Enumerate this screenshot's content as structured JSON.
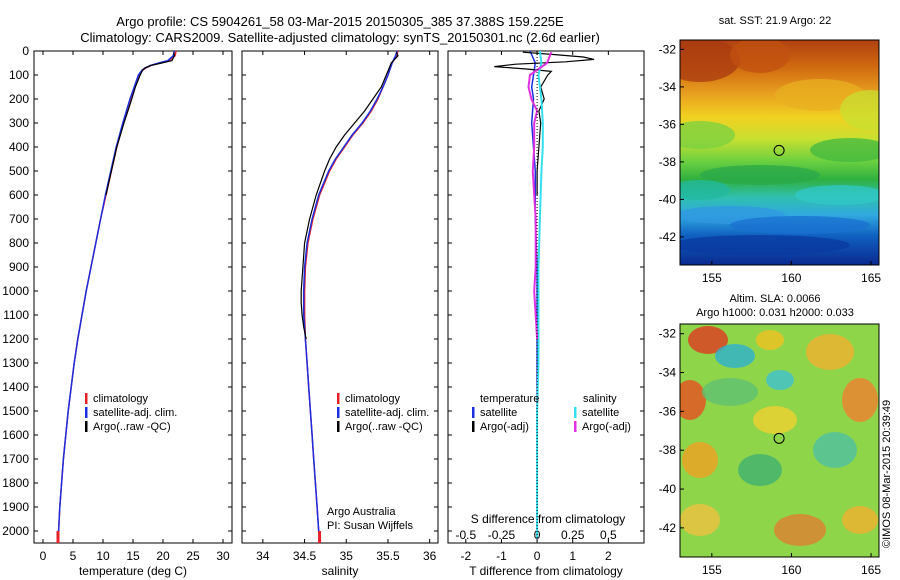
{
  "header": {
    "line1": "Argo profile: CS 5904261_58 03-Mar-2015 20150305_385 37.388S 159.225E",
    "line2": "Climatology: CARS2009. Satellite-adjusted climatology: synTS_20150301.nc (2.6d earlier)"
  },
  "stamp": "©IMOS 08-Mar-2015 20:39:49",
  "colors": {
    "climatology": "#e8202a",
    "satellite": "#1b2fe0",
    "argo": "#000000",
    "salinity_satellite": "#33e0f0",
    "salinity_argo": "#e030e0"
  },
  "chart_data": [
    {
      "type": "line",
      "name": "temperature-profile",
      "xlabel": "temperature (deg C)",
      "ylabel": "",
      "xlim": [
        -1.5,
        31.5
      ],
      "ylim": [
        0,
        2050
      ],
      "y_inverted": true,
      "xticks": [
        0,
        5,
        10,
        15,
        20,
        25,
        30
      ],
      "yticks": [
        0,
        100,
        200,
        300,
        400,
        500,
        600,
        700,
        800,
        900,
        1000,
        1100,
        1200,
        1300,
        1400,
        1500,
        1600,
        1700,
        1800,
        1900,
        2000
      ],
      "legend": [
        "climatology",
        "satellite-adj. clim.",
        "Argo(..raw -QC)"
      ],
      "legend_position": "lower-center",
      "series": [
        {
          "name": "climatology",
          "y": [
            0,
            20,
            40,
            50,
            60,
            70,
            80,
            100,
            150,
            200,
            300,
            400,
            500,
            600,
            700,
            800,
            900,
            1000,
            1100,
            1200,
            1300,
            1400,
            1500,
            1600,
            1700,
            1800,
            1900,
            2000,
            2030
          ],
          "x": [
            22.2,
            22.0,
            21.0,
            19.5,
            18.0,
            17.2,
            16.6,
            16.0,
            15.3,
            14.6,
            13.4,
            12.3,
            11.4,
            10.5,
            9.6,
            8.8,
            8.0,
            7.2,
            6.5,
            5.8,
            5.2,
            4.7,
            4.2,
            3.8,
            3.4,
            3.1,
            2.8,
            2.6,
            2.5
          ]
        },
        {
          "name": "satellite-adj. clim.",
          "y": [
            0,
            20,
            40,
            50,
            60,
            70,
            80,
            100,
            150,
            200,
            300,
            400,
            500,
            600,
            700,
            800,
            900,
            1000,
            1100,
            1200,
            1300,
            1400,
            1500,
            1600,
            1700,
            1800,
            1900,
            2000,
            2030
          ],
          "x": [
            21.9,
            21.7,
            20.8,
            19.3,
            17.9,
            17.1,
            16.5,
            15.9,
            15.2,
            14.5,
            13.3,
            12.2,
            11.3,
            10.4,
            9.6,
            8.8,
            8.0,
            7.2,
            6.5,
            5.8,
            5.2,
            4.7,
            4.2,
            3.8,
            3.4,
            3.1,
            2.8,
            2.6,
            2.5
          ]
        },
        {
          "name": "Argo(..raw -QC)",
          "y": [
            5,
            20,
            40,
            50,
            60,
            70,
            80,
            100,
            150,
            200,
            300,
            400,
            500,
            600
          ],
          "x": [
            21.8,
            21.9,
            21.5,
            19.8,
            18.0,
            17.0,
            16.6,
            16.2,
            15.4,
            14.8,
            13.5,
            12.3,
            11.4,
            10.5
          ]
        }
      ]
    },
    {
      "type": "line",
      "name": "salinity-profile",
      "xlabel": "salinity",
      "ylabel": "",
      "xlim": [
        33.75,
        36.1
      ],
      "ylim": [
        0,
        2050
      ],
      "y_inverted": true,
      "xticks": [
        34,
        34.5,
        35,
        35.5,
        36
      ],
      "xtick_labels": [
        "34",
        "34.5",
        "35",
        "35.5",
        "36"
      ],
      "legend": [
        "climatology",
        "satellite-adj. clim.",
        "Argo(..raw -QC)"
      ],
      "legend_position": "lower-center",
      "annotation": [
        "Argo Australia",
        "PI: Susan Wijffels"
      ],
      "series": [
        {
          "name": "climatology",
          "y": [
            0,
            20,
            50,
            100,
            150,
            200,
            250,
            300,
            350,
            400,
            450,
            500,
            600,
            700,
            800,
            900,
            1000,
            1100,
            1200,
            1300,
            1400,
            1500,
            1600,
            1700,
            1800,
            1900,
            2000,
            2030
          ],
          "x": [
            35.62,
            35.6,
            35.55,
            35.5,
            35.44,
            35.38,
            35.3,
            35.2,
            35.08,
            34.98,
            34.88,
            34.8,
            34.68,
            34.6,
            34.54,
            34.51,
            34.5,
            34.5,
            34.51,
            34.53,
            34.55,
            34.57,
            34.59,
            34.61,
            34.63,
            34.65,
            34.67,
            34.68
          ]
        },
        {
          "name": "satellite-adj. clim.",
          "y": [
            0,
            20,
            50,
            100,
            150,
            200,
            250,
            300,
            350,
            400,
            450,
            500,
            600,
            700,
            800,
            900,
            1000,
            1100,
            1200,
            1300,
            1400,
            1500,
            1600,
            1700,
            1800,
            1900,
            2000,
            2030
          ],
          "x": [
            35.61,
            35.59,
            35.55,
            35.5,
            35.44,
            35.37,
            35.29,
            35.19,
            35.07,
            34.97,
            34.87,
            34.79,
            34.67,
            34.59,
            34.53,
            34.5,
            34.49,
            34.49,
            34.51,
            34.53,
            34.55,
            34.57,
            34.59,
            34.61,
            34.63,
            34.65,
            34.67,
            34.68
          ]
        },
        {
          "name": "Argo(..raw -QC)",
          "y": [
            5,
            20,
            50,
            100,
            150,
            200,
            250,
            300,
            350,
            400,
            450,
            500,
            600,
            700,
            800,
            900,
            1000,
            1050,
            1100,
            1150,
            1200
          ],
          "x": [
            35.6,
            35.62,
            35.54,
            35.48,
            35.42,
            35.32,
            35.22,
            35.1,
            34.98,
            34.88,
            34.8,
            34.74,
            34.64,
            34.56,
            34.5,
            34.48,
            34.46,
            34.46,
            34.47,
            34.49,
            34.52
          ]
        }
      ]
    },
    {
      "type": "line",
      "name": "difference-profile",
      "xlabel": "T difference from climatology",
      "xlabel_top": "S difference from climatology",
      "xlim": [
        -2.5,
        3.0
      ],
      "ylim": [
        0,
        2050
      ],
      "y_inverted": true,
      "xticks": [
        -2,
        -1,
        0,
        1,
        2
      ],
      "xticks_salinity": [
        "-0.5",
        "-0.25",
        "0",
        "0.25",
        "0.5"
      ],
      "legend": {
        "temperature_heading": "temperature",
        "salinity_heading": "salinity",
        "items": [
          "satellite",
          "Argo(-adj)",
          "satellite",
          "Argo(-adj)"
        ]
      },
      "series": [
        {
          "name": "temperature satellite",
          "y": [
            0,
            50,
            100,
            150,
            200,
            300,
            400,
            500,
            700,
            900,
            1100,
            1300,
            1500,
            1700,
            1900,
            2030
          ],
          "x": [
            -0.2,
            -0.05,
            -0.1,
            -0.15,
            -0.1,
            -0.15,
            -0.1,
            -0.05,
            -0.05,
            0,
            0,
            0,
            0,
            0,
            0,
            0
          ]
        },
        {
          "name": "temperature Argo(-adj)",
          "y": [
            5,
            15,
            25,
            35,
            45,
            55,
            65,
            75,
            85,
            100,
            150,
            200,
            250,
            300,
            400,
            500,
            600
          ],
          "x": [
            -0.4,
            0.5,
            1.3,
            1.6,
            0.8,
            -0.6,
            -1.2,
            -0.3,
            0.4,
            0.3,
            0.1,
            0.2,
            0.05,
            0.1,
            0.05,
            0,
            0
          ]
        },
        {
          "name": "salinity satellite",
          "y": [
            0,
            50,
            100,
            150,
            200,
            300,
            400,
            500,
            700,
            900,
            1100,
            1300,
            1500,
            1700,
            1900,
            2030
          ],
          "x": [
            0.02,
            0.03,
            0.01,
            0.02,
            0.03,
            0.04,
            0.04,
            0.03,
            0.02,
            0.01,
            0.01,
            0.01,
            0,
            0,
            0,
            0
          ]
        },
        {
          "name": "salinity Argo(-adj)",
          "y": [
            5,
            50,
            100,
            150,
            200,
            250,
            300,
            400,
            500,
            600,
            700,
            800,
            900,
            1000,
            1100,
            1200
          ],
          "x": [
            0.1,
            0.07,
            -0.05,
            -0.06,
            -0.04,
            0,
            -0.02,
            -0.02,
            -0.03,
            -0.02,
            -0.01,
            -0.01,
            -0.01,
            -0.02,
            -0.01,
            0
          ]
        }
      ]
    },
    {
      "type": "heatmap",
      "name": "sst-map",
      "title": "sat. SST: 21.9 Argo: 22",
      "xlim": [
        153,
        165.5
      ],
      "ylim": [
        -43.5,
        -31.5
      ],
      "xticks": [
        155,
        160,
        165
      ],
      "yticks": [
        -32,
        -34,
        -36,
        -38,
        -40,
        -42
      ],
      "float_position": {
        "lon": 159.225,
        "lat": -37.388
      }
    },
    {
      "type": "heatmap",
      "name": "sla-map",
      "title": "Altim. SLA: 0.0066",
      "subtitle": "Argo h1000: 0.031 h2000: 0.033",
      "xlim": [
        153,
        165.5
      ],
      "ylim": [
        -43.5,
        -31.5
      ],
      "xticks": [
        155,
        160,
        165
      ],
      "yticks": [
        -32,
        -34,
        -36,
        -38,
        -40,
        -42
      ],
      "float_position": {
        "lon": 159.225,
        "lat": -37.388
      }
    }
  ]
}
